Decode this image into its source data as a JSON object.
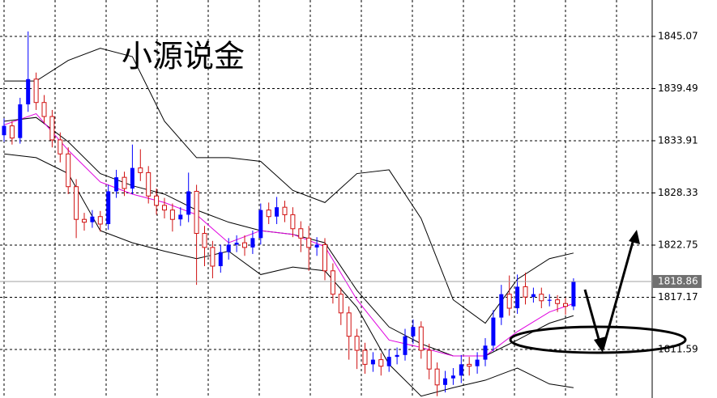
{
  "chart_data": {
    "type": "candlestick",
    "title": "小源说金",
    "open": [
      1834.5,
      1835.5,
      1834.2,
      1837.8,
      1840.5,
      1838.0,
      1836.5,
      1834.0,
      1832.5,
      1829.0,
      1825.5,
      1825.2,
      1825.8,
      1825.0,
      1828.5,
      1830.0,
      1828.8,
      1831.0,
      1830.5,
      1828.0,
      1827.0,
      1826.5,
      1825.5,
      1826.0,
      1828.5,
      1824.0,
      1822.5,
      1820.5,
      1822.0,
      1822.8,
      1823.0,
      1822.5,
      1823.5,
      1826.5,
      1825.8,
      1826.8,
      1826.0,
      1824.5,
      1823.5,
      1822.5,
      1822.8,
      1820.0,
      1817.5,
      1815.5,
      1813.0,
      1811.5,
      1810.0,
      1810.5,
      1809.8,
      1810.8,
      1811.0,
      1813.0,
      1814.0,
      1811.5,
      1809.5,
      1807.8,
      1808.5,
      1808.8,
      1810.0,
      1809.8,
      1810.5,
      1812.0,
      1815.0,
      1817.5,
      1816.0,
      1818.3,
      1817.2,
      1817.5,
      1816.8,
      1816.9,
      1816.5,
      1816.2
    ],
    "high": [
      1836.3,
      1836.0,
      1838.5,
      1845.6,
      1841.2,
      1838.8,
      1837.2,
      1834.8,
      1833.2,
      1829.8,
      1826.2,
      1826.5,
      1826.4,
      1829.2,
      1830.8,
      1830.6,
      1833.5,
      1833.0,
      1831.2,
      1828.8,
      1827.8,
      1827.2,
      1826.8,
      1830.5,
      1829.2,
      1824.8,
      1823.2,
      1822.8,
      1823.5,
      1823.8,
      1823.8,
      1824.3,
      1827.2,
      1827.3,
      1827.9,
      1827.5,
      1826.8,
      1825.3,
      1824.8,
      1823.6,
      1823.5,
      1820.8,
      1818.2,
      1816.2,
      1813.8,
      1812.3,
      1811.3,
      1811.2,
      1811.6,
      1811.8,
      1813.8,
      1814.8,
      1814.6,
      1812.2,
      1810.2,
      1809.3,
      1809.6,
      1811.0,
      1810.8,
      1811.3,
      1812.8,
      1815.8,
      1818.5,
      1819.5,
      1819.6,
      1819.8,
      1818.2,
      1818.2,
      1817.5,
      1817.4,
      1817.1,
      1819.2
    ],
    "low": [
      1833.8,
      1833.5,
      1833.6,
      1837.0,
      1837.2,
      1835.8,
      1833.2,
      1831.6,
      1828.2,
      1823.5,
      1824.3,
      1824.6,
      1824.2,
      1824.4,
      1827.8,
      1828.0,
      1828.2,
      1829.6,
      1827.2,
      1826.0,
      1825.6,
      1824.2,
      1824.8,
      1825.2,
      1818.5,
      1820.5,
      1819.2,
      1819.8,
      1821.2,
      1822.0,
      1821.6,
      1821.8,
      1822.8,
      1825.0,
      1825.0,
      1825.2,
      1823.6,
      1822.0,
      1820.0,
      1821.6,
      1819.0,
      1816.5,
      1814.2,
      1810.5,
      1809.5,
      1809.0,
      1809.2,
      1808.8,
      1809.2,
      1810.0,
      1810.4,
      1812.2,
      1810.6,
      1808.4,
      1806.6,
      1807.0,
      1807.8,
      1808.0,
      1808.8,
      1809.0,
      1809.8,
      1811.4,
      1814.2,
      1815.2,
      1815.4,
      1816.4,
      1816.6,
      1816.0,
      1816.2,
      1815.6,
      1815.3,
      1815.8
    ],
    "close": [
      1835.5,
      1834.2,
      1837.8,
      1840.5,
      1838.0,
      1836.5,
      1834.0,
      1832.5,
      1829.0,
      1825.5,
      1825.2,
      1825.8,
      1825.0,
      1828.5,
      1830.0,
      1828.8,
      1831.0,
      1830.5,
      1828.0,
      1827.0,
      1826.5,
      1825.5,
      1826.0,
      1828.5,
      1824.0,
      1822.5,
      1820.5,
      1822.0,
      1822.8,
      1823.0,
      1822.5,
      1823.5,
      1826.5,
      1825.8,
      1826.8,
      1826.0,
      1824.5,
      1823.5,
      1822.5,
      1822.8,
      1820.0,
      1817.5,
      1815.5,
      1813.0,
      1811.5,
      1810.0,
      1810.5,
      1809.8,
      1810.8,
      1811.0,
      1813.0,
      1814.0,
      1811.5,
      1809.5,
      1807.8,
      1808.5,
      1808.8,
      1810.0,
      1809.8,
      1810.5,
      1812.0,
      1815.0,
      1817.5,
      1816.0,
      1818.3,
      1817.2,
      1817.5,
      1816.8,
      1816.9,
      1816.5,
      1816.2,
      1818.86
    ],
    "up_color": "#0000ff",
    "down_color": "#d01010",
    "line_x": [
      0,
      4,
      8,
      12,
      16,
      20,
      24,
      28,
      32,
      36,
      40,
      44,
      48,
      52,
      56,
      60,
      64,
      68,
      71
    ],
    "lines": [
      {
        "color": "#000000",
        "values": [
          1840.3,
          1840.3,
          1842.5,
          1843.8,
          1842.9,
          1836.0,
          1832.1,
          1832.1,
          1831.7,
          1828.6,
          1827.3,
          1830.4,
          1830.8,
          1825.6,
          1816.9,
          1814.4,
          1819.1,
          1821.3,
          1821.9
        ]
      },
      {
        "color": "#000000",
        "values": [
          1836.0,
          1836.4,
          1833.8,
          1830.4,
          1829.1,
          1828.2,
          1826.5,
          1825.2,
          1824.3,
          1823.9,
          1823.0,
          1817.9,
          1814.0,
          1812.2,
          1810.9,
          1810.9,
          1812.6,
          1814.4,
          1815.2
        ]
      },
      {
        "color": "#000000",
        "values": [
          1832.5,
          1832.1,
          1830.4,
          1824.3,
          1823.0,
          1822.1,
          1821.3,
          1822.1,
          1819.6,
          1820.4,
          1820.0,
          1816.1,
          1810.0,
          1806.6,
          1807.5,
          1808.3,
          1809.6,
          1807.9,
          1807.5
        ]
      },
      {
        "color": "#e000e0",
        "values": [
          1835.6,
          1836.8,
          1832.9,
          1829.5,
          1828.2,
          1827.3,
          1826.0,
          1823.0,
          1824.3,
          1823.9,
          1822.6,
          1816.9,
          1812.6,
          1811.8,
          1810.9,
          1810.9,
          1813.5,
          1815.6,
          1816.5
        ]
      }
    ],
    "ylim": [
      1806.4,
      1848.96
    ],
    "yticks": [
      1845.07,
      1839.49,
      1833.91,
      1828.33,
      1822.75,
      1817.17,
      1811.59
    ],
    "current_price": 1818.86,
    "grid": true
  }
}
